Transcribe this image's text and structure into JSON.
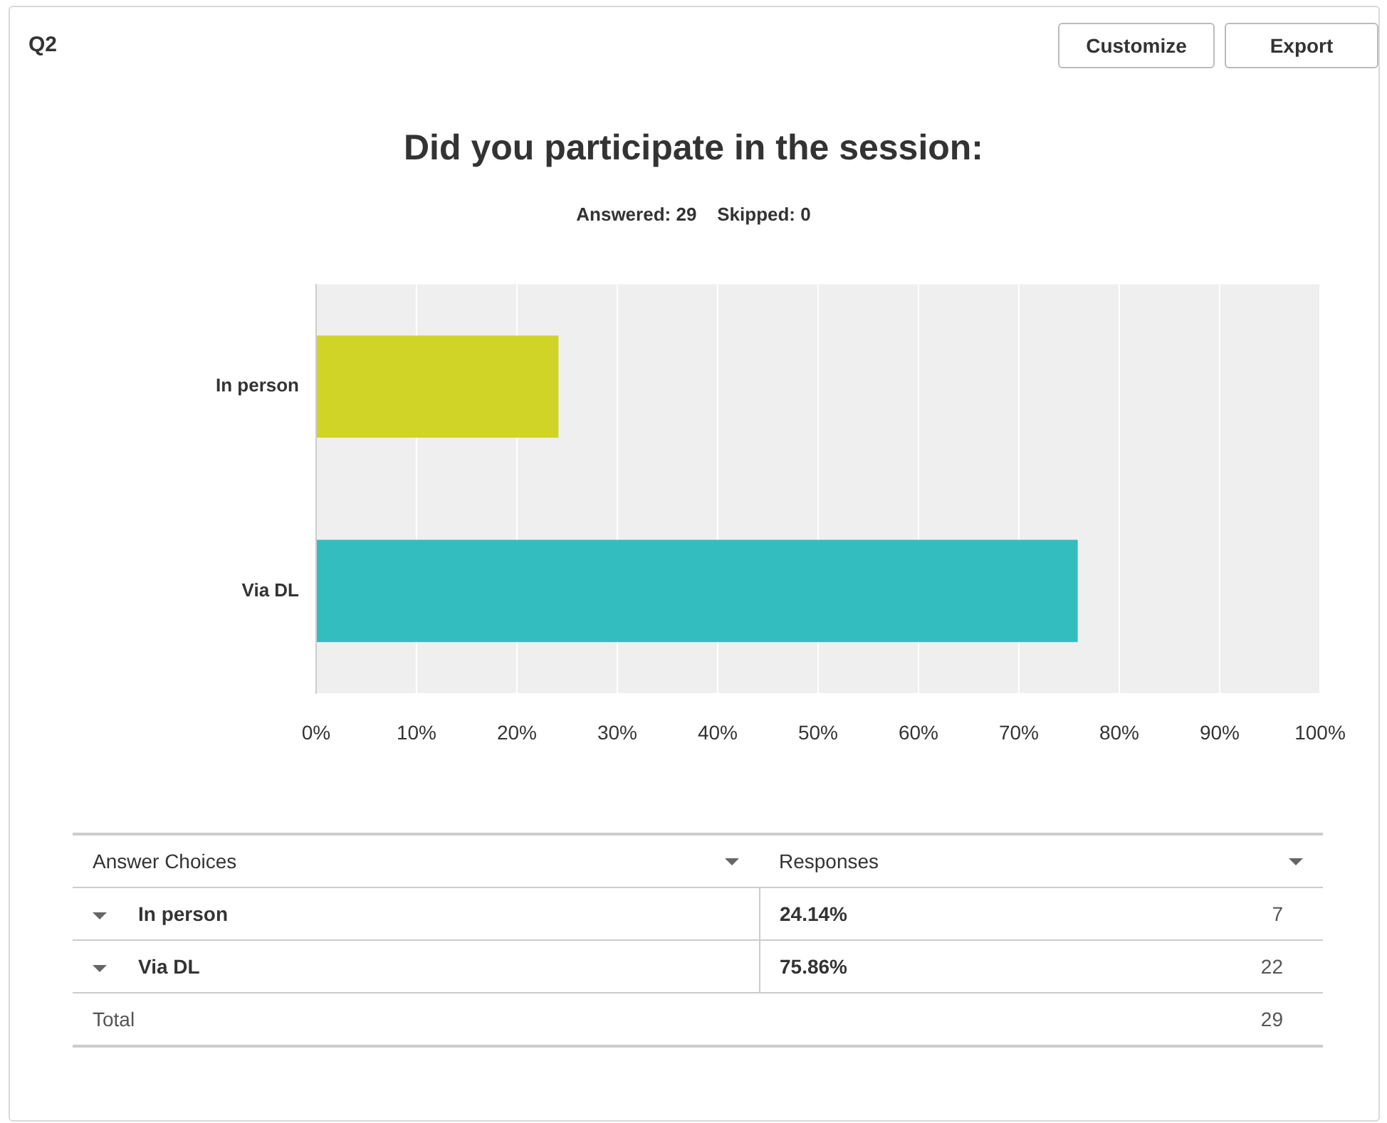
{
  "chart_data": {
    "type": "bar",
    "orientation": "horizontal",
    "title": "Did you participate in the session:",
    "subtitle": "Answered: 29    Skipped: 0",
    "categories": [
      "In person",
      "Via DL"
    ],
    "values": [
      24.14,
      75.86
    ],
    "colors": [
      "#d0d427",
      "#33bdbf"
    ],
    "xlim": [
      0,
      100
    ],
    "xticks": [
      {
        "value": 0,
        "label": "0%"
      },
      {
        "value": 10,
        "label": "10%"
      },
      {
        "value": 20,
        "label": "20%"
      },
      {
        "value": 30,
        "label": "30%"
      },
      {
        "value": 40,
        "label": "40%"
      },
      {
        "value": 50,
        "label": "50%"
      },
      {
        "value": 60,
        "label": "60%"
      },
      {
        "value": 70,
        "label": "70%"
      },
      {
        "value": 80,
        "label": "80%"
      },
      {
        "value": 90,
        "label": "90%"
      },
      {
        "value": 100,
        "label": "100%"
      }
    ],
    "grid": "x",
    "legend": false,
    "annotations": [
      "Q2",
      "Customize",
      "Export",
      "Answer Choices",
      "Responses",
      "24.14%",
      "7",
      "75.86%",
      "22",
      "Total",
      "29"
    ]
  }
}
